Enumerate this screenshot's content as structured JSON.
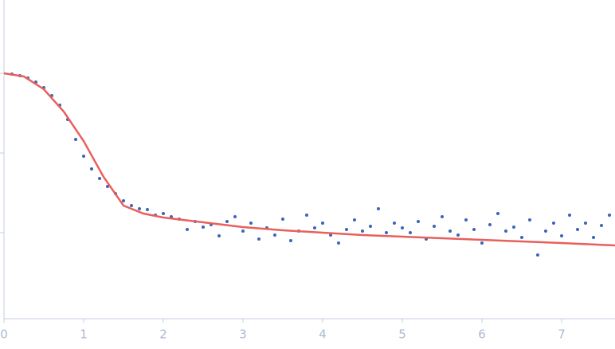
{
  "chart_data": {
    "type": "scatter",
    "xlim": [
      0,
      7.67
    ],
    "xticks": [
      0,
      1,
      2,
      3,
      4,
      5,
      6,
      7
    ],
    "ylim": [
      -3.08,
      0.92
    ],
    "yticks": [
      -2,
      -1,
      0
    ],
    "series": [
      {
        "kind": "points",
        "color": "#3a66b8",
        "x": [
          0.1,
          0.2,
          0.3,
          0.4,
          0.5,
          0.6,
          0.7,
          0.8,
          0.9,
          1.0,
          1.1,
          1.2,
          1.3,
          1.4,
          1.5,
          1.6,
          1.7,
          1.8,
          1.9,
          2.0,
          2.1,
          2.2,
          2.3,
          2.4,
          2.5,
          2.6,
          2.7,
          2.8,
          2.9,
          3.0,
          3.1,
          3.2,
          3.3,
          3.4,
          3.5,
          3.6,
          3.7,
          3.8,
          3.9,
          4.0,
          4.1,
          4.2,
          4.3,
          4.4,
          4.5,
          4.6,
          4.7,
          4.8,
          4.9,
          5.0,
          5.1,
          5.2,
          5.3,
          5.4,
          5.5,
          5.6,
          5.7,
          5.8,
          5.9,
          6.0,
          6.1,
          6.2,
          6.3,
          6.4,
          6.5,
          6.6,
          6.7,
          6.8,
          6.9,
          7.0,
          7.1,
          7.2,
          7.3,
          7.4,
          7.5,
          7.6
        ],
        "values": [
          -0.01,
          -0.03,
          -0.06,
          -0.11,
          -0.18,
          -0.28,
          -0.4,
          -0.58,
          -0.83,
          -1.04,
          -1.2,
          -1.32,
          -1.42,
          -1.51,
          -1.6,
          -1.66,
          -1.7,
          -1.71,
          -1.78,
          -1.76,
          -1.8,
          -1.83,
          -1.96,
          -1.86,
          -1.93,
          -1.9,
          -2.04,
          -1.86,
          -1.8,
          -1.98,
          -1.88,
          -2.08,
          -1.94,
          -2.03,
          -1.83,
          -2.1,
          -1.98,
          -1.78,
          -1.94,
          -1.88,
          -2.03,
          -2.13,
          -1.96,
          -1.84,
          -1.98,
          -1.92,
          -1.7,
          -2.0,
          -1.88,
          -1.94,
          -2.0,
          -1.86,
          -2.08,
          -1.92,
          -1.8,
          -1.98,
          -2.03,
          -1.84,
          -1.96,
          -2.13,
          -1.9,
          -1.76,
          -1.98,
          -1.93,
          -2.06,
          -1.84,
          -2.28,
          -1.98,
          -1.88,
          -2.04,
          -1.78,
          -1.96,
          -1.88,
          -2.06,
          -1.91,
          -1.78
        ]
      },
      {
        "kind": "line",
        "color": "#e8605c",
        "x": [
          0,
          0.25,
          0.5,
          0.75,
          1,
          1.25,
          1.5,
          1.75,
          2,
          2.5,
          3,
          3.5,
          4,
          4.5,
          5,
          5.5,
          6,
          6.5,
          7,
          7.67
        ],
        "values": [
          0,
          -0.04,
          -0.2,
          -0.48,
          -0.85,
          -1.3,
          -1.66,
          -1.76,
          -1.81,
          -1.87,
          -1.93,
          -1.97,
          -2.0,
          -2.03,
          -2.05,
          -2.07,
          -2.09,
          -2.11,
          -2.13,
          -2.16
        ]
      }
    ]
  }
}
